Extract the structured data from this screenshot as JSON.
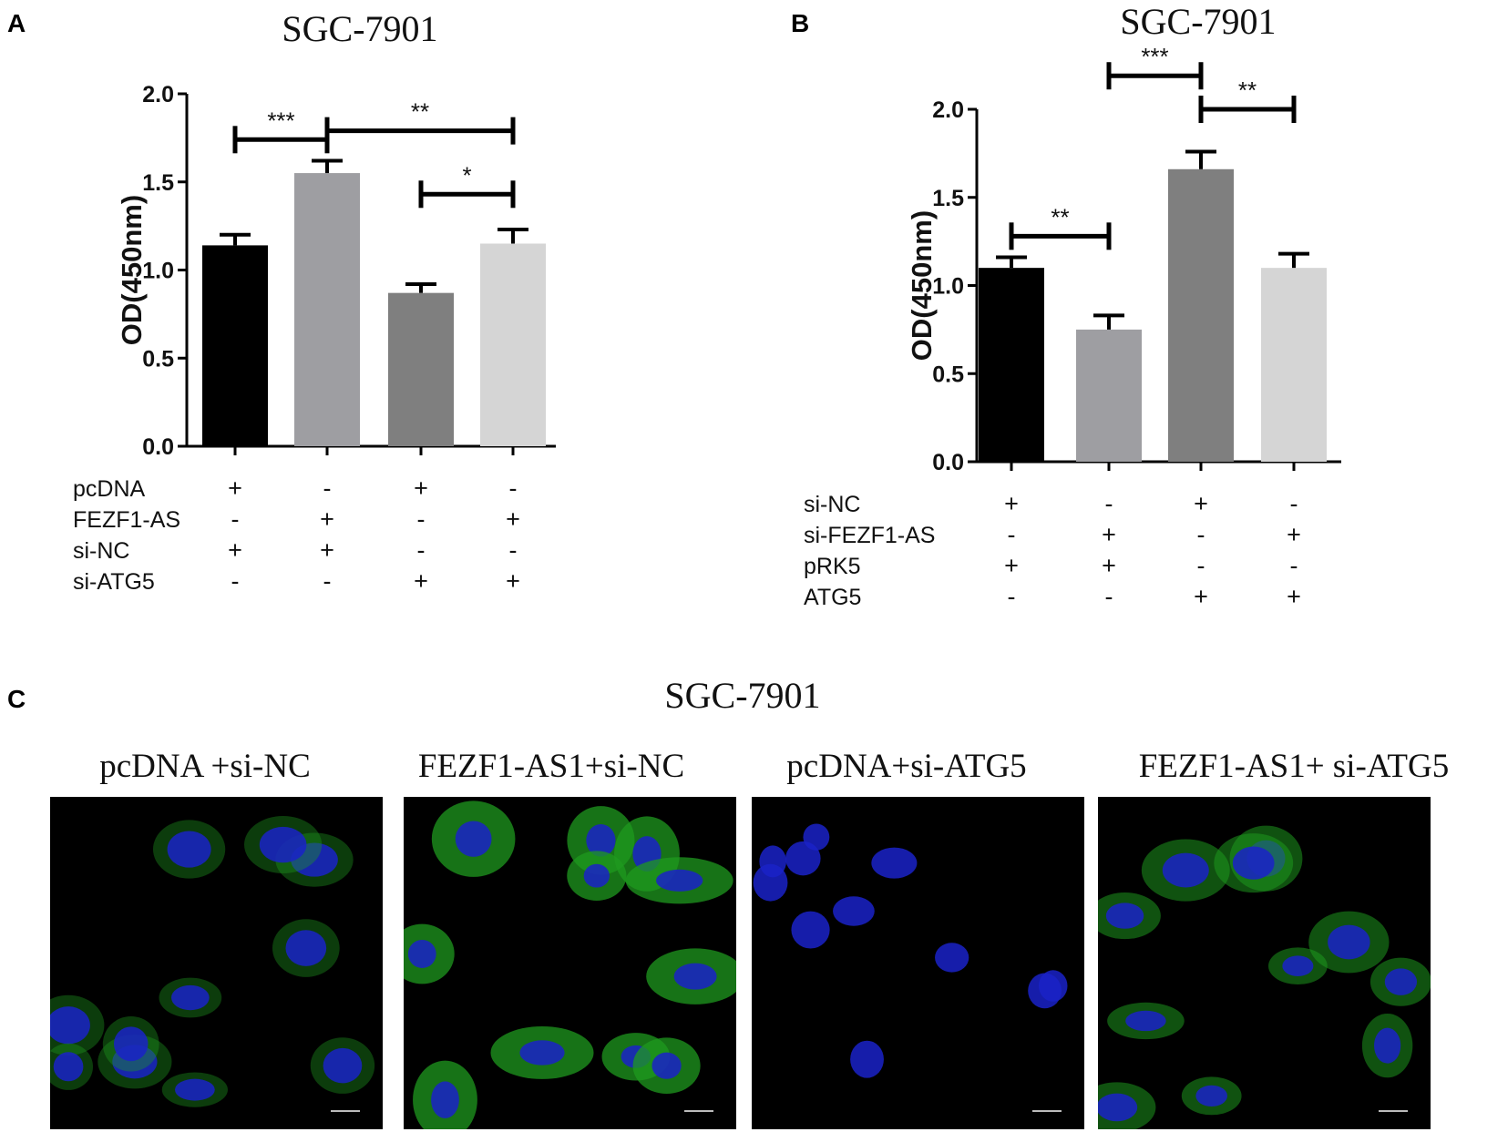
{
  "panels": {
    "A": {
      "letter": "A",
      "title": "SGC-7901"
    },
    "B": {
      "letter": "B",
      "title": "SGC-7901"
    },
    "C": {
      "letter": "C",
      "title": "SGC-7901"
    }
  },
  "chart_data": [
    {
      "type": "bar",
      "title": "SGC-7901",
      "ylabel": "OD(450nm)",
      "ylim": [
        0,
        2.0
      ],
      "yticks": [
        "0.0",
        "0.5",
        "1.0",
        "1.5",
        "2.0"
      ],
      "categories": [
        "1",
        "2",
        "3",
        "4"
      ],
      "values": [
        1.14,
        1.55,
        0.87,
        1.15
      ],
      "errors": [
        0.06,
        0.07,
        0.05,
        0.08
      ],
      "colors": [
        "#000000",
        "#9e9ea2",
        "#7f7f7f",
        "#d5d5d5"
      ],
      "conditions": [
        {
          "label": "pcDNA",
          "signs": [
            "+",
            "-",
            "+",
            "-"
          ]
        },
        {
          "label": "FEZF1-AS",
          "signs": [
            "-",
            "+",
            "-",
            "+"
          ]
        },
        {
          "label": "si-NC",
          "signs": [
            "+",
            "+",
            "-",
            "-"
          ]
        },
        {
          "label": "si-ATG5",
          "signs": [
            "-",
            "-",
            "+",
            "+"
          ]
        }
      ],
      "significance": [
        {
          "from": 0,
          "to": 1,
          "label": "***",
          "level": 1.74
        },
        {
          "from": 1,
          "to": 3,
          "label": "**",
          "level": 1.79
        },
        {
          "from": 2,
          "to": 3,
          "label": "*",
          "level": 1.43
        }
      ]
    },
    {
      "type": "bar",
      "title": "SGC-7901",
      "ylabel": "OD(450nm)",
      "ylim": [
        0,
        2.0
      ],
      "yticks": [
        "0.0",
        "0.5",
        "1.0",
        "1.5",
        "2.0"
      ],
      "categories": [
        "1",
        "2",
        "3",
        "4"
      ],
      "values": [
        1.1,
        0.75,
        1.66,
        1.1
      ],
      "errors": [
        0.06,
        0.08,
        0.1,
        0.08
      ],
      "colors": [
        "#000000",
        "#9e9ea2",
        "#7f7f7f",
        "#d5d5d5"
      ],
      "conditions": [
        {
          "label": "si-NC",
          "signs": [
            "+",
            "-",
            "+",
            "-"
          ]
        },
        {
          "label": "si-FEZF1-AS",
          "signs": [
            "-",
            "+",
            "-",
            "+"
          ]
        },
        {
          "label": "pRK5",
          "signs": [
            "+",
            "+",
            "-",
            "-"
          ]
        },
        {
          "label": "ATG5",
          "signs": [
            "-",
            "-",
            "+",
            "+"
          ]
        }
      ],
      "significance": [
        {
          "from": 0,
          "to": 1,
          "label": "**",
          "level": 1.28
        },
        {
          "from": 2,
          "to": 3,
          "label": "**",
          "level": 2.0
        },
        {
          "from": 1,
          "to": 2,
          "label": "***",
          "level": 2.19
        }
      ]
    }
  ],
  "microscopy": {
    "title": "SGC-7901",
    "images": [
      {
        "label": "pcDNA +si-NC",
        "green_intensity": 0.25
      },
      {
        "label": "FEZF1-AS1+si-NC",
        "green_intensity": 0.9
      },
      {
        "label": "pcDNA+si-ATG5",
        "green_intensity": 0.1
      },
      {
        "label": "FEZF1-AS1+ si-ATG5",
        "green_intensity": 0.5
      }
    ]
  }
}
